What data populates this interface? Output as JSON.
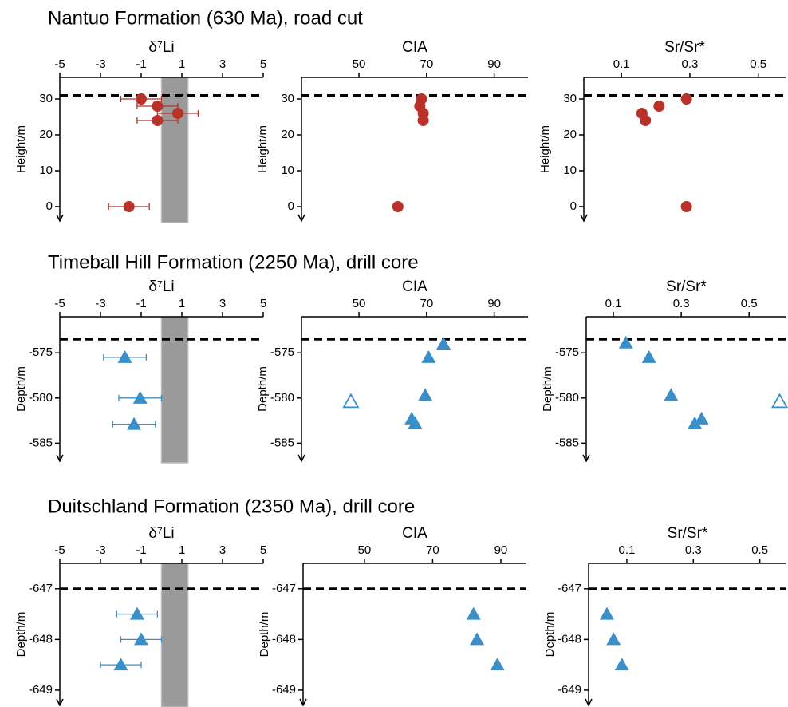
{
  "sections": [
    {
      "title": "Nantuo Formation (630 Ma), road cut",
      "chart_data": [
        {
          "type": "scatter",
          "xlabel": "δ⁷Li",
          "ylabel": "Height/m",
          "xlim": [
            -5,
            5
          ],
          "xticks": [
            -5,
            -3,
            -1,
            1,
            3,
            5
          ],
          "ylim": [
            -4,
            36
          ],
          "yticks": [
            0,
            10,
            20,
            30
          ],
          "band": [
            0,
            1.3
          ],
          "hline": 31,
          "series": [
            {
              "color": "#b8322a",
              "marker": "circle",
              "filled": true,
              "x": [
                -1,
                -0.2,
                0.8,
                -0.2,
                -1.6
              ],
              "values": [
                30,
                28,
                26,
                24,
                0
              ],
              "errors": [
                1,
                1,
                1,
                1,
                1
              ]
            }
          ]
        },
        {
          "type": "scatter",
          "xlabel": "CIA",
          "ylabel": "Height/m",
          "xlim": [
            33,
            100
          ],
          "xticks": [
            50,
            70,
            90
          ],
          "ylim": [
            -4,
            36
          ],
          "yticks": [
            0,
            10,
            20,
            30
          ],
          "hline": 31,
          "series": [
            {
              "color": "#b8322a",
              "marker": "circle",
              "filled": true,
              "x": [
                68.5,
                68,
                69,
                69,
                61.5
              ],
              "values": [
                30,
                28,
                26,
                24,
                0
              ]
            }
          ]
        },
        {
          "type": "scatter",
          "xlabel": "Sr/Sr*",
          "ylabel": "Height/m",
          "xlim": [
            -0.01,
            0.58
          ],
          "xticks": [
            0.1,
            0.3,
            0.5
          ],
          "ylim": [
            -4,
            36
          ],
          "yticks": [
            0,
            10,
            20,
            30
          ],
          "hline": 31,
          "series": [
            {
              "color": "#b8322a",
              "marker": "circle",
              "filled": true,
              "x": [
                0.29,
                0.21,
                0.16,
                0.17,
                0.29
              ],
              "values": [
                30,
                28,
                26,
                24,
                0
              ]
            }
          ]
        }
      ]
    },
    {
      "title": "Timeball Hill Formation (2250 Ma), drill core",
      "chart_data": [
        {
          "type": "scatter",
          "xlabel": "δ⁷Li",
          "ylabel": "Depth/m",
          "xlim": [
            -5,
            5
          ],
          "xticks": [
            -5,
            -3,
            -1,
            1,
            3,
            5
          ],
          "ylim": [
            -587,
            -571
          ],
          "yticks": [
            -585,
            -580,
            -575
          ],
          "band": [
            0,
            1.3
          ],
          "hline": -573.5,
          "series": [
            {
              "color": "#3a8fc8",
              "marker": "triangle",
              "filled": true,
              "x": [
                -1.8,
                -1.05,
                -1.35
              ],
              "values": [
                -575.5,
                -580,
                -582.9
              ],
              "errors": [
                1.05,
                1.05,
                1.05
              ]
            }
          ]
        },
        {
          "type": "scatter",
          "xlabel": "CIA",
          "ylabel": "Depth/m",
          "xlim": [
            33,
            100
          ],
          "xticks": [
            50,
            70,
            90
          ],
          "ylim": [
            -587,
            -571
          ],
          "yticks": [
            -585,
            -580,
            -575
          ],
          "hline": -573.5,
          "series": [
            {
              "color": "#3a8fc8",
              "marker": "triangle",
              "filled": true,
              "x": [
                75,
                70.6,
                69.6,
                65.6,
                66.6
              ],
              "values": [
                -574,
                -575.5,
                -579.7,
                -582.3,
                -582.8
              ]
            },
            {
              "color": "#3a8fc8",
              "marker": "triangle",
              "filled": false,
              "x": [
                47.6
              ],
              "values": [
                -580.4
              ]
            }
          ]
        },
        {
          "type": "scatter",
          "xlabel": "Sr/Sr*",
          "ylabel": "Depth/m",
          "xlim": [
            0.02,
            0.61
          ],
          "xticks": [
            0.1,
            0.3,
            0.5
          ],
          "ylim": [
            -587,
            -571
          ],
          "yticks": [
            -585,
            -580,
            -575
          ],
          "hline": -573.5,
          "series": [
            {
              "color": "#3a8fc8",
              "marker": "triangle",
              "filled": true,
              "x": [
                0.137,
                0.205,
                0.27,
                0.36,
                0.34
              ],
              "values": [
                -573.9,
                -575.5,
                -579.7,
                -582.3,
                -582.8
              ]
            },
            {
              "color": "#3a8fc8",
              "marker": "triangle",
              "filled": false,
              "x": [
                0.59
              ],
              "values": [
                -580.4
              ]
            }
          ]
        }
      ]
    },
    {
      "title": "Duitschland Formation (2350 Ma), drill core",
      "chart_data": [
        {
          "type": "scatter",
          "xlabel": "δ⁷Li",
          "ylabel": "Depth/m",
          "xlim": [
            -5,
            5
          ],
          "xticks": [
            -5,
            -3,
            -1,
            1,
            3,
            5
          ],
          "ylim": [
            -649.3,
            -646.5
          ],
          "yticks": [
            -649,
            -648,
            -647
          ],
          "band": [
            0,
            1.3
          ],
          "hline": -647,
          "series": [
            {
              "color": "#3a8fc8",
              "marker": "triangle",
              "filled": true,
              "x": [
                -1.2,
                -1,
                -2
              ],
              "values": [
                -647.5,
                -648,
                -648.5
              ],
              "errors": [
                1,
                1,
                1
              ]
            }
          ]
        },
        {
          "type": "scatter",
          "xlabel": "CIA",
          "ylabel": "Depth/m",
          "xlim": [
            32,
            97.5
          ],
          "xticks": [
            50,
            70,
            90
          ],
          "ylim": [
            -649.3,
            -646.5
          ],
          "yticks": [
            -649,
            -648,
            -647
          ],
          "hline": -647,
          "series": [
            {
              "color": "#3a8fc8",
              "marker": "triangle",
              "filled": true,
              "x": [
                82,
                83,
                89
              ],
              "values": [
                -647.5,
                -648,
                -648.5
              ]
            }
          ]
        },
        {
          "type": "scatter",
          "xlabel": "Sr/Sr*",
          "ylabel": "Depth/m",
          "xlim": [
            -0.015,
            0.58
          ],
          "xticks": [
            0.1,
            0.3,
            0.5
          ],
          "ylim": [
            -649.3,
            -646.5
          ],
          "yticks": [
            -649,
            -648,
            -647
          ],
          "hline": -647,
          "series": [
            {
              "color": "#3a8fc8",
              "marker": "triangle",
              "filled": true,
              "x": [
                0.04,
                0.06,
                0.085
              ],
              "values": [
                -647.5,
                -648,
                -648.5
              ]
            }
          ]
        }
      ]
    }
  ]
}
